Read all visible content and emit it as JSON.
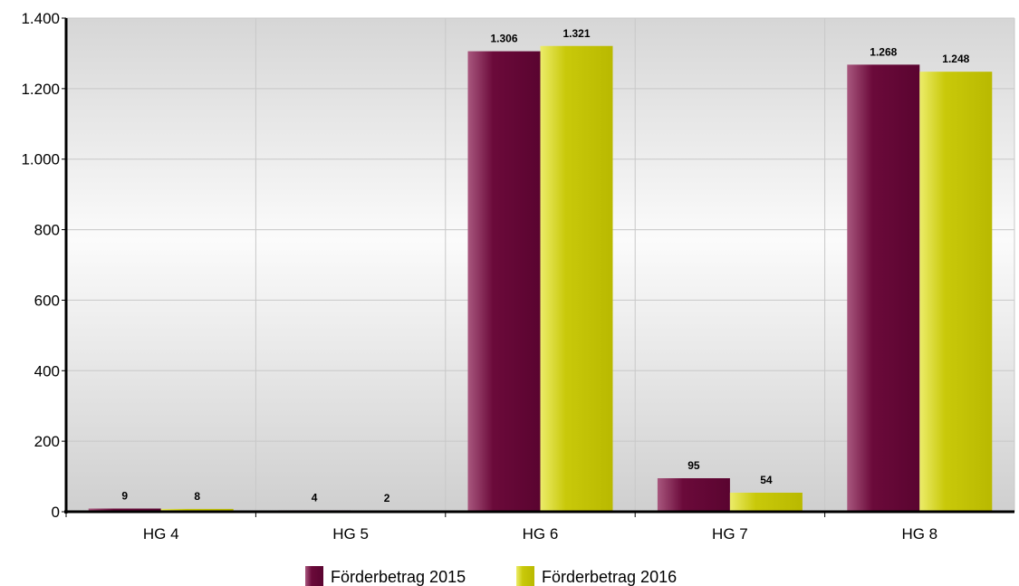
{
  "chart_data": {
    "type": "bar",
    "categories": [
      "HG 4",
      "HG 5",
      "HG 6",
      "HG 7",
      "HG 8"
    ],
    "series": [
      {
        "name": "Förderbetrag 2015",
        "values": [
          9,
          4,
          1306,
          95,
          1268
        ],
        "labels": [
          "9",
          "4",
          "1.306",
          "95",
          "1.268"
        ],
        "color": "#6b0a3a",
        "highlight": "#a8577e"
      },
      {
        "name": "Förderbetrag 2016",
        "values": [
          8,
          2,
          1321,
          54,
          1248
        ],
        "labels": [
          "8",
          "2",
          "1.321",
          "54",
          "1.248"
        ],
        "color": "#c9c90a",
        "highlight": "#ecec6a"
      }
    ],
    "yticks": [
      0,
      200,
      400,
      600,
      800,
      1000,
      1200,
      1400
    ],
    "ytick_labels": [
      "0",
      "200",
      "400",
      "600",
      "800",
      "1.000",
      "1.200",
      "1.400"
    ],
    "ylim": [
      0,
      1400
    ],
    "grid": true,
    "legend_position": "bottom-center",
    "xlabel": "",
    "ylabel": "",
    "title": ""
  }
}
